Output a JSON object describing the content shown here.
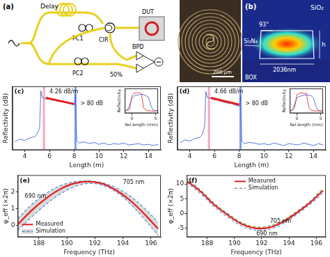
{
  "schematic": {
    "label": "(a)",
    "delay": "Delay",
    "pc1": "PC1",
    "circulator": "CIR",
    "dut": "DUT",
    "pc2": "PC2",
    "coupler": "50%",
    "detector": "BPD"
  },
  "micrograph": {
    "scale_bar": "200 μm"
  },
  "mode_profile": {
    "label": "(b)",
    "cladding": "SiO₂",
    "angle": "93°",
    "core": "Si₃N₄",
    "height": "h",
    "width": "2036nm",
    "substrate": "BOX"
  },
  "chart_data": [
    {
      "type": "line",
      "panel": "(c)",
      "x_label": "Length (m)",
      "y_label": "Reflectivity (dB)",
      "xlim": [
        3,
        15
      ],
      "xticks": [
        4,
        6,
        8,
        10,
        12,
        14
      ],
      "ylim": [
        -95,
        5
      ],
      "tick_labels": "x",
      "grid": false,
      "x": [
        3.2,
        3.6,
        4.0,
        4.4,
        4.8,
        5.0,
        5.2,
        5.3,
        5.4,
        5.6,
        5.8,
        6.0,
        6.2,
        6.4,
        6.6,
        6.8,
        7.0,
        7.2,
        7.4,
        7.6,
        7.8,
        8.0,
        8.1,
        8.2,
        8.4,
        8.8,
        9.2,
        9.6,
        10,
        10.4,
        10.8,
        11.2,
        11.6,
        12,
        12.4,
        12.8,
        13.2,
        13.6,
        14,
        14.4,
        14.8
      ],
      "series": [
        {
          "color": "#2a55d8",
          "values": [
            -82,
            -78,
            -80,
            -76,
            -74,
            -70,
            -60,
            -2,
            -12,
            -14,
            -15,
            -14,
            -17,
            -16,
            -18,
            -19,
            -18,
            -20,
            -21,
            -22,
            -23,
            -24,
            -8,
            -80,
            -84,
            -82,
            -85,
            -83,
            -86,
            -84,
            -87,
            -85,
            -86,
            -84,
            -87,
            -86,
            -85,
            -87,
            -86,
            -88,
            -86
          ]
        }
      ],
      "fit": {
        "color": "#e02020",
        "x": [
          5.7,
          8.0
        ],
        "values": [
          -13,
          -22.8
        ]
      },
      "markers": [
        {
          "x": 5.55,
          "color": "#f7a8c0"
        },
        {
          "x": 8.1,
          "color": "#7f9fe8"
        }
      ],
      "annotations": [
        {
          "text": "4.26 dB/m",
          "x": 6.0,
          "y": -4
        },
        {
          "text": "> 80 dB",
          "x": 8.5,
          "y": -22
        }
      ],
      "inset": {
        "type": "line",
        "x_label": "Rel.length (mm)",
        "y_label": "Reflectivity",
        "xlim": [
          -1.5,
          5.5
        ],
        "xticks": [
          0,
          5
        ],
        "ylim": [
          0,
          1
        ],
        "tick_labels": "x",
        "x": [
          -1.5,
          -1,
          -0.5,
          0,
          0.5,
          1,
          1.5,
          2,
          2.5,
          3,
          3.5,
          4,
          4.5,
          5,
          5.5
        ],
        "series": [
          {
            "color": "#e02020",
            "values": [
              0.1,
              0.12,
              0.15,
              0.7,
              0.82,
              0.8,
              0.85,
              0.78,
              0.2,
              0.12,
              0.1,
              0.1,
              0.08,
              0.1,
              0.09
            ]
          },
          {
            "color": "#2a55d8",
            "values": [
              0.1,
              0.12,
              0.3,
              0.6,
              0.7,
              0.72,
              0.75,
              0.76,
              0.74,
              0.7,
              0.65,
              0.3,
              0.12,
              0.1,
              0.1
            ]
          }
        ]
      }
    },
    {
      "type": "line",
      "panel": "(d)",
      "x_label": "Length (m)",
      "y_label": "Reflectivity (dB)",
      "xlim": [
        3,
        15
      ],
      "xticks": [
        4,
        6,
        8,
        10,
        12,
        14
      ],
      "ylim": [
        -95,
        5
      ],
      "tick_labels": "x",
      "grid": false,
      "x": [
        3.2,
        3.6,
        4.0,
        4.4,
        4.8,
        5.0,
        5.2,
        5.3,
        5.4,
        5.6,
        5.8,
        6.0,
        6.2,
        6.4,
        6.6,
        6.8,
        7.0,
        7.2,
        7.4,
        7.6,
        7.8,
        8.0,
        8.1,
        8.2,
        8.4,
        8.8,
        9.2,
        9.6,
        10,
        10.4,
        10.8,
        11.2,
        11.6,
        12,
        12.4,
        12.8,
        13.2,
        13.6,
        14,
        14.4,
        14.8
      ],
      "series": [
        {
          "color": "#2a55d8",
          "values": [
            -84,
            -79,
            -81,
            -77,
            -75,
            -71,
            -58,
            -3,
            -12,
            -13,
            -15,
            -16,
            -16,
            -18,
            -19,
            -20,
            -21,
            -22,
            -22,
            -24,
            -25,
            -26,
            -9,
            -81,
            -85,
            -83,
            -84,
            -86,
            -85,
            -87,
            -84,
            -86,
            -88,
            -85,
            -86,
            -87,
            -84,
            -86,
            -88,
            -85,
            -87
          ]
        }
      ],
      "fit": {
        "color": "#e02020",
        "x": [
          5.7,
          8.0
        ],
        "values": [
          -13,
          -23.7
        ]
      },
      "markers": [
        {
          "x": 5.55,
          "color": "#f7a8c0"
        },
        {
          "x": 8.1,
          "color": "#7f9fe8"
        }
      ],
      "annotations": [
        {
          "text": "4.66 dB/m",
          "x": 6.0,
          "y": -4
        },
        {
          "text": "> 80 dB",
          "x": 8.5,
          "y": -22
        }
      ],
      "inset": {
        "type": "line",
        "x_label": "Rel.length (mm)",
        "y_label": "Reflectivity",
        "xlim": [
          -1.5,
          5.5
        ],
        "xticks": [
          0,
          5
        ],
        "ylim": [
          0,
          1
        ],
        "tick_labels": "x",
        "x": [
          -1.5,
          -1,
          -0.5,
          0,
          0.5,
          1,
          1.5,
          2,
          2.5,
          3,
          3.5,
          4,
          4.5,
          5,
          5.5
        ],
        "series": [
          {
            "color": "#e02020",
            "values": [
              0.1,
              0.11,
              0.2,
              0.75,
              0.8,
              0.83,
              0.79,
              0.81,
              0.25,
              0.12,
              0.1,
              0.09,
              0.1,
              0.08,
              0.1
            ]
          },
          {
            "color": "#2a55d8",
            "values": [
              0.1,
              0.13,
              0.35,
              0.62,
              0.68,
              0.7,
              0.73,
              0.74,
              0.72,
              0.71,
              0.6,
              0.28,
              0.12,
              0.1,
              0.1
            ]
          }
        ]
      }
    },
    {
      "type": "line",
      "panel": "(e)",
      "x_label": "Frequency (THz)",
      "y_label": "φ_eff (×2π)",
      "xlim": [
        186.5,
        196.7
      ],
      "xticks": [
        188,
        190,
        192,
        194,
        196
      ],
      "ylim": [
        -0.7,
        3
      ],
      "yticks": [
        0,
        1,
        2
      ],
      "grid": false,
      "legend": "lower left",
      "x": [
        186.5,
        187.5,
        188.5,
        189.5,
        190.5,
        191.5,
        192.5,
        193.5,
        194.5,
        195.5,
        196.5
      ],
      "series": [
        {
          "name": "Measured",
          "color": "#e02020",
          "line_style": "solid",
          "values": [
            0.05,
            0.9,
            1.6,
            2.15,
            2.5,
            2.62,
            2.5,
            2.1,
            1.5,
            0.7,
            -0.2
          ]
        },
        {
          "name": "Simulation",
          "type": "band",
          "color": "#5a8ad8",
          "line_style": "dashed",
          "curves": [
            {
              "color": "#5a8ad8",
              "values": [
                0.4,
                1.25,
                1.9,
                2.35,
                2.6,
                2.65,
                2.55,
                2.25,
                1.75,
                1.05,
                0.2
              ]
            },
            {
              "color": "#5a8ad8",
              "values": [
                -0.3,
                0.5,
                1.25,
                1.85,
                2.3,
                2.5,
                2.4,
                2.0,
                1.3,
                0.4,
                -0.6
              ]
            }
          ]
        }
      ],
      "annotations": [
        {
          "text": "690 nm",
          "x": 187.0,
          "y": 1.75
        },
        {
          "text": "705 nm",
          "x": 194.0,
          "y": 2.55
        }
      ]
    },
    {
      "type": "line",
      "panel": "(f)",
      "x_label": "Frequency (THz)",
      "y_label": "φ_eff (×2π)",
      "xlim": [
        186.5,
        196.7
      ],
      "xticks": [
        188,
        190,
        192,
        194,
        196
      ],
      "ylim": [
        -8,
        13
      ],
      "yticks": [
        -5,
        0,
        5,
        10
      ],
      "grid": false,
      "legend": "upper center",
      "x": [
        186.5,
        187.5,
        188.5,
        189.5,
        190.5,
        191.5,
        192.5,
        193.5,
        194.5,
        195.5,
        196.5
      ],
      "series": [
        {
          "name": "Measured",
          "color": "#e02020",
          "line_style": "solid",
          "values": [
            11,
            7.5,
            3,
            -0.5,
            -3.5,
            -5,
            -4.8,
            -3,
            0,
            3.5,
            7.8
          ]
        },
        {
          "name": "Simulation",
          "type": "line",
          "color": "#5aa05a",
          "line_style": "dashed",
          "curves": [
            {
              "color": "#5aa05a",
              "values": [
                12,
                8,
                3.5,
                0,
                -3,
                -4.5,
                -4.3,
                -2.5,
                0.5,
                4,
                8.5
              ]
            },
            {
              "color": "#5a8ad8",
              "values": [
                10.5,
                6.8,
                2.3,
                -1.2,
                -4.2,
                -5.6,
                -5.4,
                -3.6,
                -0.6,
                2.9,
                7
              ]
            }
          ]
        }
      ],
      "annotations": [
        {
          "text": "705 nm",
          "x": 192.6,
          "y": -2.6
        },
        {
          "text": "690 nm",
          "x": 191.6,
          "y": -7.0
        }
      ]
    }
  ]
}
